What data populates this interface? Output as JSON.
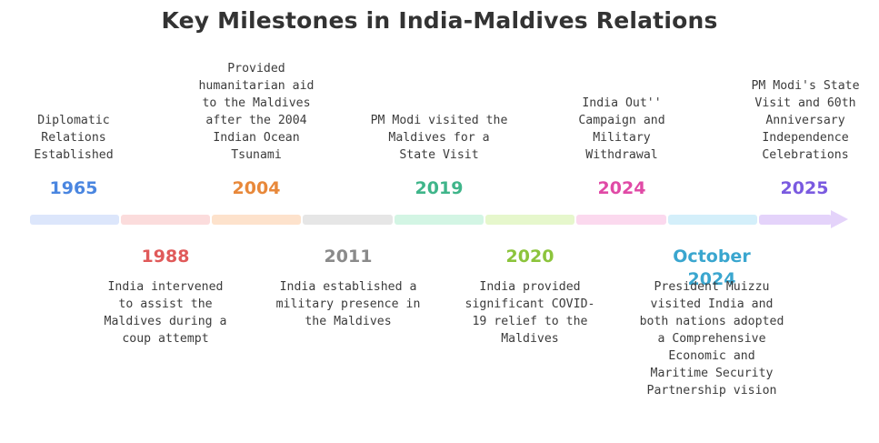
{
  "title": "Key Milestones in India-Maldives Relations",
  "milestones": [
    {
      "year": "1965",
      "description": "Diplomatic Relations Established",
      "color": "#4a86e0",
      "bar_color": "#dce6fb"
    },
    {
      "year": "1988",
      "description": "India intervened to assist the Maldives during a coup attempt",
      "color": "#e05a5a",
      "bar_color": "#fbdcdc"
    },
    {
      "year": "2004",
      "description": "Provided humanitarian aid to the Maldives after the 2004 Indian Ocean Tsunami",
      "color": "#e8883a",
      "bar_color": "#fde2cc"
    },
    {
      "year": "2011",
      "description": "India established a military presence in the Maldives",
      "color": "#8a8a8a",
      "bar_color": "#e6e6e6"
    },
    {
      "year": "2019",
      "description": "PM Modi visited the Maldives for a State Visit",
      "color": "#3fb58a",
      "bar_color": "#d3f5e4"
    },
    {
      "year": "2020",
      "description": "India provided significant COVID-19 relief to the Maldives",
      "color": "#8cc43c",
      "bar_color": "#e6f7cc"
    },
    {
      "year": "2024",
      "description": "India Out'' Campaign and Military Withdrawal",
      "color": "#e04aa6",
      "bar_color": "#fbd9ee"
    },
    {
      "year": "October 2024",
      "description": "President Muizzu visited India and both nations adopted a Comprehensive Economic and Maritime Security Partnership vision",
      "color": "#3aa6cf",
      "bar_color": "#d4effa"
    },
    {
      "year": "2025",
      "description": "PM Modi's State Visit and 60th Anniversary Independence Celebrations",
      "color": "#7a5ae0",
      "bar_color": "#e4d3fa"
    }
  ]
}
